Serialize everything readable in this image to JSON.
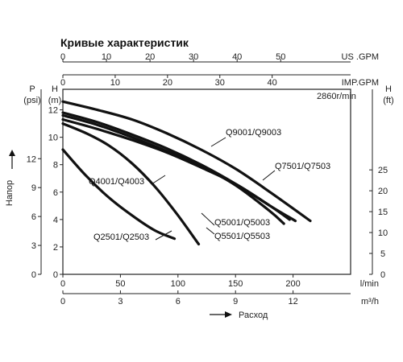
{
  "chart_data": {
    "type": "line",
    "title": "Кривые характеристик",
    "y_axis_label": "Напор",
    "x_axis_label": "Расход",
    "speed_note": "2860r/min",
    "axes": {
      "x_lpm": {
        "unit": "l/min",
        "range": [
          0,
          250
        ],
        "ticks": [
          "0",
          "50",
          "100",
          "150",
          "200"
        ]
      },
      "x_m3h": {
        "unit": "m³/h",
        "ticks": [
          "0",
          "3",
          "6",
          "9",
          "12"
        ]
      },
      "x_usgpm": {
        "unit": "US .GPM",
        "ticks": [
          "0",
          "10",
          "20",
          "30",
          "40",
          "50"
        ]
      },
      "x_impgpm": {
        "unit": "IMP.GPM",
        "ticks": [
          "0",
          "10",
          "20",
          "30",
          "40"
        ]
      },
      "y_m": {
        "unit": "H",
        "unit2": "(m)",
        "range": [
          0,
          13.5
        ],
        "ticks": [
          "0",
          "2",
          "4",
          "6",
          "8",
          "10",
          "12"
        ]
      },
      "y_psi": {
        "unit": "P",
        "unit2": "(psi)",
        "ticks": [
          "0",
          "3",
          "6",
          "9",
          "12"
        ]
      },
      "y_ft": {
        "unit": "H",
        "unit2": "(ft)",
        "ticks": [
          "0",
          "5",
          "10",
          "15",
          "20",
          "25"
        ]
      }
    },
    "series": [
      {
        "name": "Q2501/Q2503",
        "x": [
          0,
          20,
          40,
          60,
          80,
          97
        ],
        "y": [
          9.1,
          7.2,
          5.6,
          4.3,
          3.2,
          2.6
        ]
      },
      {
        "name": "Q4001/Q4003",
        "x": [
          0,
          20,
          40,
          60,
          80,
          100,
          118
        ],
        "y": [
          11.0,
          10.3,
          9.4,
          8.1,
          6.4,
          4.3,
          2.2
        ]
      },
      {
        "name": "Q5001/Q5003",
        "x": [
          0,
          30,
          60,
          90,
          120,
          150,
          180,
          197
        ],
        "y": [
          11.3,
          10.6,
          9.8,
          8.9,
          7.8,
          6.6,
          5.0,
          4.0
        ]
      },
      {
        "name": "Q5501/Q5503",
        "x": [
          0,
          30,
          60,
          90,
          120,
          150,
          180,
          192
        ],
        "y": [
          11.6,
          10.9,
          10.0,
          9.0,
          7.9,
          6.5,
          4.6,
          3.7
        ]
      },
      {
        "name": "Q7501/Q7503",
        "x": [
          0,
          30,
          60,
          90,
          120,
          150,
          180,
          202
        ],
        "y": [
          11.8,
          11.1,
          10.2,
          9.2,
          8.0,
          6.6,
          5.0,
          3.9
        ]
      },
      {
        "name": "Q9001/Q9003",
        "x": [
          0,
          30,
          60,
          90,
          120,
          150,
          180,
          215
        ],
        "y": [
          12.6,
          12.0,
          11.3,
          10.3,
          9.1,
          7.7,
          6.0,
          3.9
        ]
      }
    ]
  }
}
